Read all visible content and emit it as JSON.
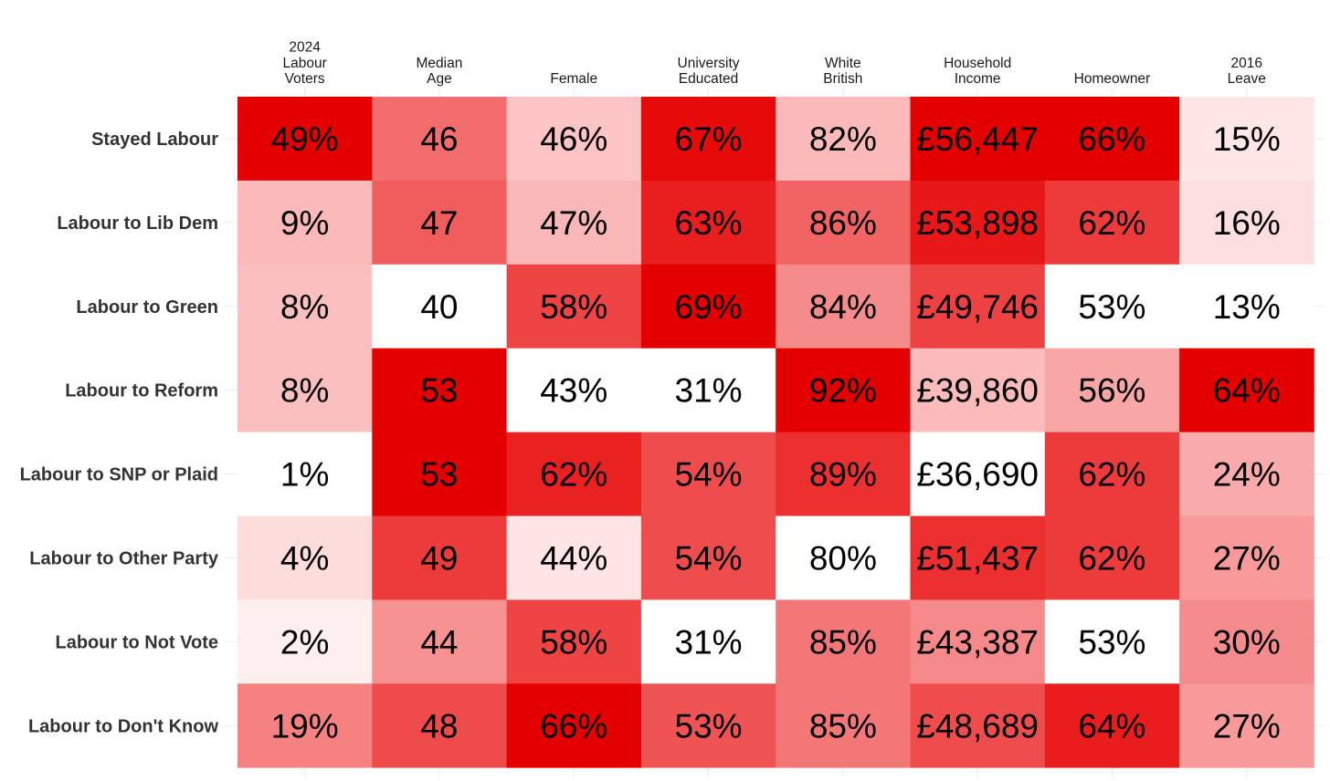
{
  "chart_data": {
    "type": "heatmap",
    "columns": [
      [
        "2024",
        "Labour",
        "Voters"
      ],
      [
        "Median",
        "Age"
      ],
      [
        "Female"
      ],
      [
        "University",
        "Educated"
      ],
      [
        "White",
        "British"
      ],
      [
        "Household",
        "Income"
      ],
      [
        "Homeowner"
      ],
      [
        "2016",
        "Leave"
      ]
    ],
    "rows": [
      "Stayed Labour",
      "Labour to Lib Dem",
      "Labour to Green",
      "Labour to Reform",
      "Labour to SNP or Plaid",
      "Labour to Other Party",
      "Labour to Not Vote",
      "Labour to Don't Know"
    ],
    "labels": [
      [
        "49%",
        "46",
        "46%",
        "67%",
        "82%",
        "£56,447",
        "66%",
        "15%"
      ],
      [
        "9%",
        "47",
        "47%",
        "63%",
        "86%",
        "£53,898",
        "62%",
        "16%"
      ],
      [
        "8%",
        "40",
        "58%",
        "69%",
        "84%",
        "£49,746",
        "53%",
        "13%"
      ],
      [
        "8%",
        "53",
        "43%",
        "31%",
        "92%",
        "£39,860",
        "56%",
        "64%"
      ],
      [
        "1%",
        "53",
        "62%",
        "54%",
        "89%",
        "£36,690",
        "62%",
        "24%"
      ],
      [
        "4%",
        "49",
        "44%",
        "54%",
        "80%",
        "£51,437",
        "62%",
        "27%"
      ],
      [
        "2%",
        "44",
        "58%",
        "31%",
        "85%",
        "£43,387",
        "53%",
        "30%"
      ],
      [
        "19%",
        "48",
        "66%",
        "53%",
        "85%",
        "£48,689",
        "64%",
        "27%"
      ]
    ],
    "values": [
      [
        49,
        46,
        46,
        67,
        82,
        56447,
        66,
        15
      ],
      [
        9,
        47,
        47,
        63,
        86,
        53898,
        62,
        16
      ],
      [
        8,
        40,
        58,
        69,
        84,
        49746,
        53,
        13
      ],
      [
        8,
        53,
        43,
        31,
        92,
        39860,
        56,
        64
      ],
      [
        1,
        53,
        62,
        54,
        89,
        36690,
        62,
        24
      ],
      [
        4,
        49,
        44,
        54,
        80,
        51437,
        62,
        27
      ],
      [
        2,
        44,
        58,
        31,
        85,
        43387,
        53,
        30
      ],
      [
        19,
        48,
        66,
        53,
        85,
        48689,
        64,
        27
      ]
    ],
    "color_scale": {
      "low": "#ffffff",
      "high": "#e50000",
      "normalization": "per-column min-max"
    }
  }
}
